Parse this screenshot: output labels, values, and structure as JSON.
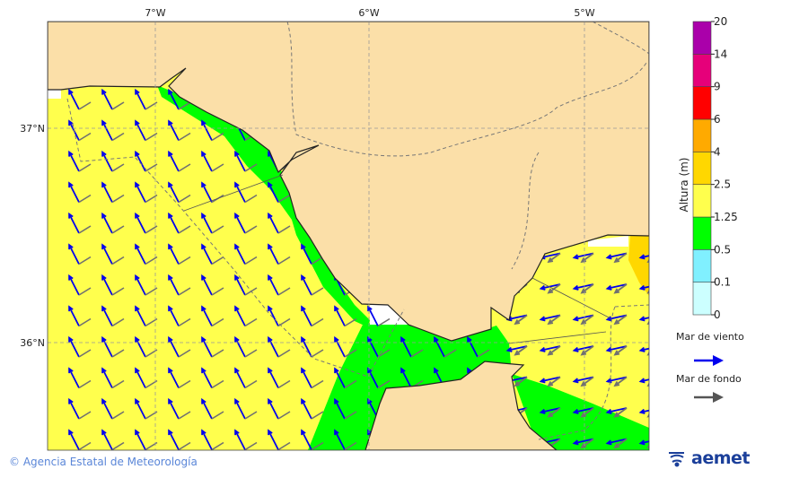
{
  "map": {
    "lon_labels": [
      "7°W",
      "6°W",
      "5°W"
    ],
    "lat_labels": [
      "37°N",
      "36°N"
    ],
    "colors": {
      "land": "#fbdfa8",
      "yellow": "#ffff4d",
      "green": "#00ff00",
      "gold": "#ffd700",
      "white": "#ffffff",
      "wind_arrow": "#0000ee",
      "swell_arrow": "#707070"
    }
  },
  "colorbar": {
    "title": "Altura (m)",
    "ticks": [
      "0",
      "0.1",
      "0.5",
      "1.25",
      "2.5",
      "4",
      "6",
      "9",
      "14",
      "20"
    ],
    "colors": [
      "#ccffff",
      "#80f0ff",
      "#00ff00",
      "#ffff4d",
      "#ffd700",
      "#ffaa00",
      "#ff0000",
      "#e6007a",
      "#aa00aa"
    ]
  },
  "legend": {
    "wind_sea": "Mar de viento",
    "swell": "Mar de fondo"
  },
  "credit": "© Agencia Estatal de Meteorología",
  "logo": "aemet"
}
